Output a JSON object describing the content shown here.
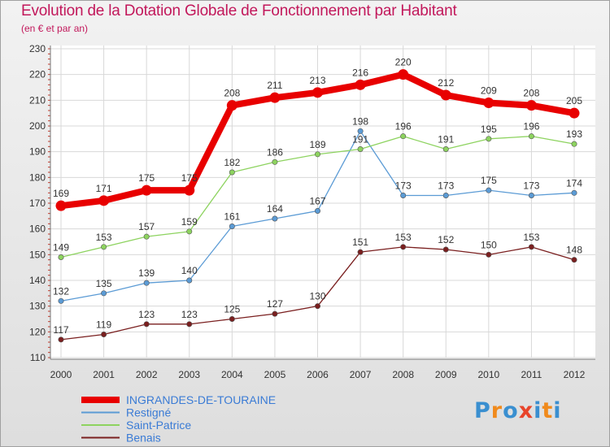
{
  "title": "Evolution de la Dotation Globale de Fonctionnement par Habitant",
  "subtitle": "(en € et par an)",
  "logo": {
    "text": "Proxiti",
    "letters": [
      "P",
      "r",
      "o",
      "x",
      "i",
      "t",
      "i"
    ]
  },
  "chart_data": {
    "type": "line",
    "title": "Evolution de la Dotation Globale de Fonctionnement par Habitant",
    "ylabel": "(en € et par an)",
    "xlabel": "",
    "x": [
      "2000",
      "2001",
      "2002",
      "2003",
      "2004",
      "2005",
      "2006",
      "2007",
      "2008",
      "2009",
      "2010",
      "2011",
      "2012"
    ],
    "ylim": [
      110,
      230
    ],
    "yticks": [
      110,
      120,
      130,
      140,
      150,
      160,
      170,
      180,
      190,
      200,
      210,
      220,
      230
    ],
    "grid": true,
    "legend_position": "bottom-left",
    "series": [
      {
        "name": "INGRANDES-DE-TOURAINE",
        "color": "#e80000",
        "values": [
          169,
          171,
          175,
          175,
          208,
          211,
          213,
          216,
          220,
          212,
          209,
          208,
          205
        ]
      },
      {
        "name": "Restigné",
        "color": "#5b9bd5",
        "values": [
          132,
          135,
          139,
          140,
          161,
          164,
          167,
          198,
          173,
          173,
          175,
          173,
          174
        ]
      },
      {
        "name": "Saint-Patrice",
        "color": "#8dd35f",
        "values": [
          149,
          153,
          157,
          159,
          182,
          186,
          189,
          191,
          196,
          191,
          195,
          196,
          193
        ]
      },
      {
        "name": "Benais",
        "color": "#7a1f1f",
        "values": [
          117,
          119,
          123,
          123,
          125,
          127,
          130,
          151,
          153,
          152,
          150,
          153,
          148
        ]
      }
    ]
  }
}
